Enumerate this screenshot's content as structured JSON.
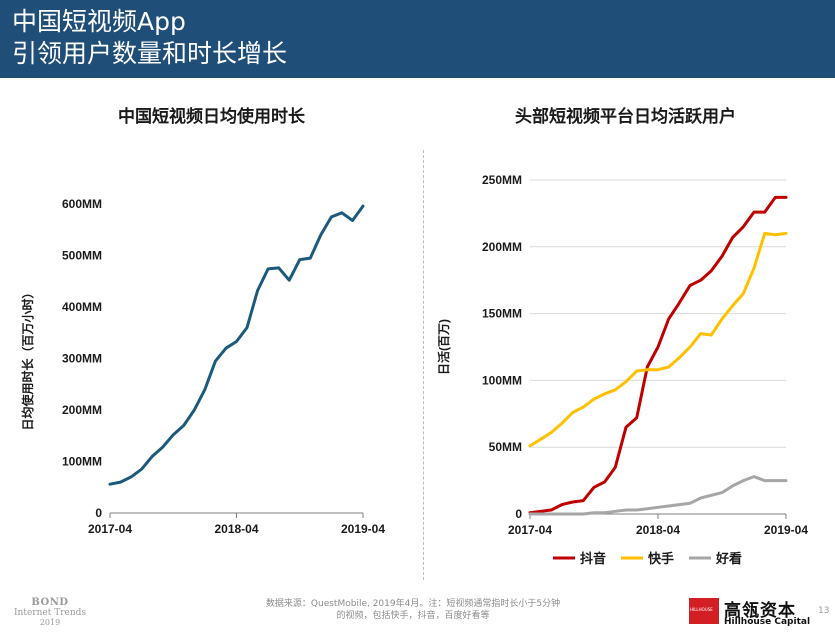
{
  "header": {
    "title_line1": "中国短视频App",
    "title_line2": "引领用户数量和时长增长"
  },
  "colors": {
    "header_bg": "#1f4e79",
    "line_blue": "#1b5a7c",
    "douyin_red": "#c00000",
    "kuaishou_yellow": "#ffc000",
    "haokan_gray": "#a6a6a6"
  },
  "chart_data": [
    {
      "type": "line",
      "title": "中国短视频日均使用时长",
      "ylabel": "日均使用时长（百万小时）",
      "xlabel": "",
      "ylim": [
        0,
        600
      ],
      "y_ticks": [
        "0",
        "100MM",
        "200MM",
        "300MM",
        "400MM",
        "500MM",
        "600MM"
      ],
      "x_ticks": [
        "2017-04",
        "2018-04",
        "2019-04"
      ],
      "x_range": [
        "2017-04",
        "2019-04"
      ],
      "grid": false,
      "legend": "none",
      "series": [
        {
          "x": [
            "2017-04",
            "2017-05",
            "2017-06",
            "2017-07",
            "2017-08",
            "2017-09",
            "2017-10",
            "2017-11",
            "2017-12",
            "2018-01",
            "2018-02",
            "2018-03",
            "2018-04",
            "2018-05",
            "2018-06",
            "2018-07",
            "2018-08",
            "2018-09",
            "2018-10",
            "2018-11",
            "2018-12",
            "2019-01",
            "2019-02",
            "2019-03",
            "2019-04"
          ],
          "values": [
            56,
            60,
            70,
            85,
            110,
            128,
            152,
            170,
            200,
            240,
            295,
            320,
            333,
            360,
            432,
            474,
            476,
            452,
            492,
            495,
            540,
            575,
            583,
            568,
            596
          ]
        }
      ]
    },
    {
      "type": "line",
      "title": "头部短视频平台日均活跃用户",
      "ylabel": "日活(百万)",
      "xlabel": "",
      "ylim": [
        0,
        250
      ],
      "y_ticks": [
        "0",
        "50MM",
        "100MM",
        "150MM",
        "200MM",
        "250MM"
      ],
      "x_ticks": [
        "2017-04",
        "2018-04",
        "2019-04"
      ],
      "x_range": [
        "2017-04",
        "2019-04"
      ],
      "grid": true,
      "legend": "bottom",
      "x": [
        "2017-04",
        "2017-05",
        "2017-06",
        "2017-07",
        "2017-08",
        "2017-09",
        "2017-10",
        "2017-11",
        "2017-12",
        "2018-01",
        "2018-02",
        "2018-03",
        "2018-04",
        "2018-05",
        "2018-06",
        "2018-07",
        "2018-08",
        "2018-09",
        "2018-10",
        "2018-11",
        "2018-12",
        "2019-01",
        "2019-02",
        "2019-03",
        "2019-04"
      ],
      "series": [
        {
          "name": "抖音",
          "values": [
            1,
            2,
            3,
            7,
            9,
            10,
            20,
            24,
            35,
            65,
            72,
            110,
            125,
            146,
            158,
            171,
            175,
            182,
            193,
            207,
            215,
            226,
            226,
            237,
            237
          ]
        },
        {
          "name": "快手",
          "values": [
            51,
            56,
            61,
            68,
            76,
            80,
            86,
            90,
            93,
            99,
            107,
            108,
            108,
            110,
            117,
            125,
            135,
            134,
            146,
            156,
            165,
            184,
            210,
            209,
            210
          ]
        },
        {
          "name": "好看",
          "values": [
            0,
            0,
            0,
            0,
            0,
            0,
            1,
            1,
            2,
            3,
            3,
            4,
            5,
            6,
            7,
            8,
            12,
            14,
            16,
            21,
            25,
            28,
            25,
            25,
            25
          ]
        }
      ]
    }
  ],
  "footer": {
    "bond_line1": "BOND",
    "bond_line2": "Internet Trends",
    "bond_line3": "2019",
    "source_line1": "数据来源：QuestMobile, 2019年4月。注：短视频通常指时长小于5分钟",
    "source_line2": "的视频，包括快手，抖音，百度好看等",
    "logo_box_text": "HILLHOUSE",
    "logo_cn": "高瓴资本",
    "logo_en": "Hillhouse Capital",
    "page_number": "13"
  }
}
